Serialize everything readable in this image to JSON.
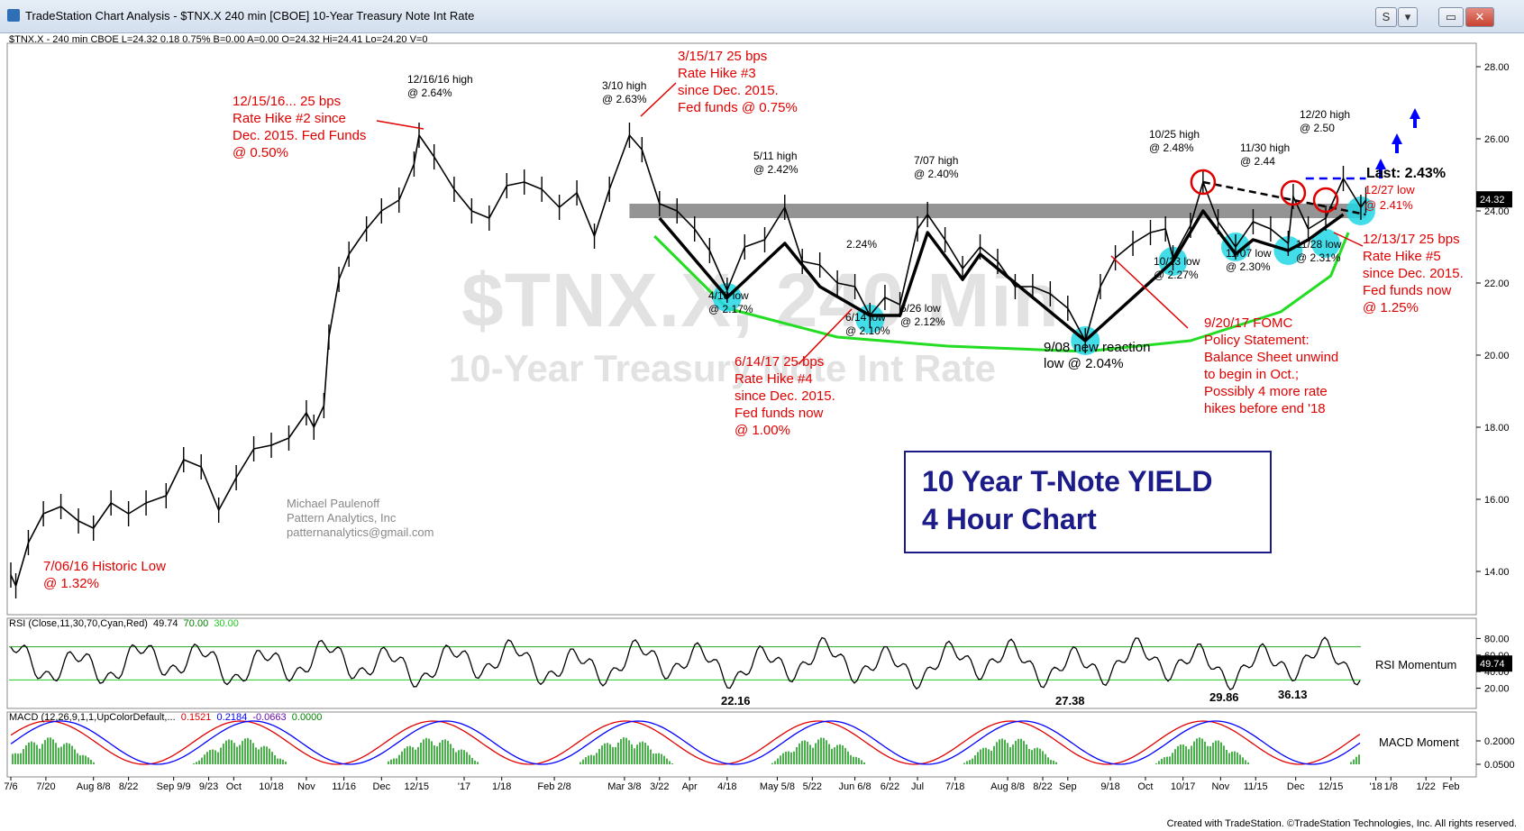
{
  "window": {
    "title": "TradeStation Chart Analysis - $TNX.X 240 min [CBOE] 10-Year Treasury Note Int Rate",
    "buttons": [
      "S",
      "▾",
      "▭",
      "✕"
    ]
  },
  "symbol_line": "$TNX.X - 240 min  CBOE  L=24.32  0.18  0.75%  B=0.00  A=0.00  O=24.32  Hi=24.41  Lo=24.20  V=0",
  "footer": "Created with TradeStation. ©TradeStation Technologies, Inc. All rights reserved.",
  "watermark": {
    "symbol": "$TNX.X, 240 Min",
    "name": "10-Year Treasury Note Int Rate"
  },
  "credit": [
    "Michael Paulenoff",
    "Pattern Analytics, Inc",
    "patternanalytics@gmail.com"
  ],
  "title_box": [
    "10 Year T-Note YIELD",
    "4 Hour Chart"
  ],
  "last_label": "Last: 2.43%",
  "price_badge": "24.32",
  "colors": {
    "accent_red": "#e00000",
    "channel": "#22dd22",
    "support_bar": "#888888",
    "highlight": "#22d7e6",
    "title_blue": "#1b1b8a",
    "arrow_blue": "#0000ff"
  },
  "annotations_red": [
    {
      "id": "low1606",
      "lines": [
        "7/06/16 Historic Low",
        "@ 1.32%"
      ]
    },
    {
      "id": "hike2",
      "lines": [
        "12/15/16... 25 bps",
        "Rate Hike #2 since",
        "Dec. 2015. Fed Funds",
        "@ 0.50%"
      ]
    },
    {
      "id": "hike3",
      "lines": [
        "3/15/17 25 bps",
        "Rate Hike #3",
        "since Dec. 2015.",
        "Fed funds @ 0.75%"
      ]
    },
    {
      "id": "hike4",
      "lines": [
        "6/14/17 25 bps",
        "Rate Hike #4",
        "since Dec. 2015.",
        "Fed funds now",
        "@ 1.00%"
      ]
    },
    {
      "id": "fomc",
      "lines": [
        "9/20/17 FOMC",
        "Policy Statement:",
        "Balance Sheet unwind",
        "to begin in Oct.;",
        "Possibly 4 more rate",
        "hikes before end '18"
      ]
    },
    {
      "id": "hike5",
      "lines": [
        "12/13/17 25 bps",
        "Rate Hike #5",
        "since Dec. 2015.",
        "Fed funds now",
        "@ 1.25%"
      ]
    },
    {
      "id": "low1227",
      "lines": [
        "12/27 low",
        "@ 2.41%"
      ]
    }
  ],
  "annotations_black": [
    {
      "id": "h1216",
      "lines": [
        "12/16/16 high",
        "@ 2.64%"
      ]
    },
    {
      "id": "h0310",
      "lines": [
        "3/10 high",
        "@ 2.63%"
      ]
    },
    {
      "id": "h0511",
      "lines": [
        "5/11 high",
        "@ 2.42%"
      ]
    },
    {
      "id": "h0707",
      "lines": [
        "7/07 high",
        "@ 2.40%"
      ]
    },
    {
      "id": "h224",
      "lines": [
        "2.24%"
      ]
    },
    {
      "id": "l0418",
      "lines": [
        "4/18 low",
        "@ 2.17%"
      ]
    },
    {
      "id": "l0614",
      "lines": [
        "6/14 low",
        "@ 2.10%"
      ]
    },
    {
      "id": "l0626",
      "lines": [
        "6/26 low",
        "@ 2.12%"
      ]
    },
    {
      "id": "l0908",
      "lines": [
        "9/08 new reaction",
        "low @ 2.04%"
      ]
    },
    {
      "id": "h1025",
      "lines": [
        "10/25 high",
        "@ 2.48%"
      ]
    },
    {
      "id": "h1130",
      "lines": [
        "11/30 high",
        "@ 2.44"
      ]
    },
    {
      "id": "h1220",
      "lines": [
        "12/20 high",
        "@ 2.50"
      ]
    },
    {
      "id": "l1013",
      "lines": [
        "10/13 low",
        "@ 2.27%"
      ]
    },
    {
      "id": "l1107",
      "lines": [
        "11/07 low",
        "@ 2.30%"
      ]
    },
    {
      "id": "l1128",
      "lines": [
        "11/28 low",
        "@ 2.31%"
      ]
    }
  ],
  "rsi_panel": {
    "header": "RSI (Close,11,30,70,Cyan,Red)  49.74  70.00  30.00",
    "header_parts": [
      "RSI (Close,11,30,70,Cyan,Red)",
      "49.74",
      "70.00",
      "30.00"
    ],
    "label": "RSI Momentum",
    "value_badge": "49.74",
    "ticks": [
      "80.00",
      "60.00",
      "40.00",
      "20.00"
    ],
    "tick_values": [
      80,
      60,
      40,
      20
    ],
    "low_labels": [
      "22.16",
      "27.38",
      "29.86",
      "36.13"
    ]
  },
  "macd_panel": {
    "header_parts": [
      "MACD (12,26,9,1,1,UpColorDefault,...",
      "0.1521",
      "0.2184",
      "-0.0663",
      "0.0000"
    ],
    "label": "MACD Moment",
    "ticks": [
      "0.2000",
      "0.0500"
    ]
  },
  "chart_data": {
    "type": "line",
    "title": "",
    "ylabel": "",
    "ylim": [
      12.8,
      28.6
    ],
    "y_ticks": [
      14,
      16,
      18,
      20,
      22,
      24,
      26,
      28
    ],
    "y_tick_labels": [
      "14.00",
      "16.00",
      "18.00",
      "20.00",
      "22.00",
      "24.00",
      "26.00",
      "28.00"
    ],
    "x_tick_labels": [
      "7/6",
      "7/20",
      "Aug 8/8",
      "8/22",
      "Sep 9/9",
      "9/23",
      "Oct",
      "10/18",
      "Nov",
      "11/16",
      "Dec",
      "12/15",
      "'17",
      "1/18",
      "Feb 2/8",
      "Mar 3/8",
      "3/22",
      "Apr",
      "4/18",
      "May 5/8",
      "5/22",
      "Jun 6/8",
      "6/22",
      "Jul",
      "7/18",
      "Aug 8/8",
      "8/22",
      "Sep",
      "9/18",
      "Oct",
      "10/17",
      "Nov",
      "11/15",
      "Dec",
      "12/15",
      "'18",
      "1/8",
      "1/22",
      "Feb"
    ],
    "x_tick_dates": [
      "2016-07-06",
      "2016-07-20",
      "2016-08-08",
      "2016-08-22",
      "2016-09-09",
      "2016-09-23",
      "2016-10-03",
      "2016-10-18",
      "2016-11-01",
      "2016-11-16",
      "2016-12-01",
      "2016-12-15",
      "2017-01-03",
      "2017-01-18",
      "2017-02-08",
      "2017-03-08",
      "2017-03-22",
      "2017-04-03",
      "2017-04-18",
      "2017-05-08",
      "2017-05-22",
      "2017-06-08",
      "2017-06-22",
      "2017-07-03",
      "2017-07-18",
      "2017-08-08",
      "2017-08-22",
      "2017-09-01",
      "2017-09-18",
      "2017-10-02",
      "2017-10-17",
      "2017-11-01",
      "2017-11-15",
      "2017-12-01",
      "2017-12-15",
      "2018-01-02",
      "2018-01-08",
      "2018-01-22",
      "2018-02-01"
    ],
    "series": [
      {
        "name": "$TNX.X",
        "points": [
          [
            "2016-07-06",
            13.9
          ],
          [
            "2016-07-08",
            13.6
          ],
          [
            "2016-07-13",
            14.8
          ],
          [
            "2016-07-19",
            15.6
          ],
          [
            "2016-07-26",
            15.8
          ],
          [
            "2016-08-02",
            15.4
          ],
          [
            "2016-08-08",
            15.2
          ],
          [
            "2016-08-15",
            15.9
          ],
          [
            "2016-08-22",
            15.6
          ],
          [
            "2016-08-29",
            15.9
          ],
          [
            "2016-09-06",
            16.1
          ],
          [
            "2016-09-13",
            17.1
          ],
          [
            "2016-09-20",
            16.9
          ],
          [
            "2016-09-27",
            15.7
          ],
          [
            "2016-10-04",
            16.6
          ],
          [
            "2016-10-11",
            17.4
          ],
          [
            "2016-10-18",
            17.5
          ],
          [
            "2016-10-25",
            17.7
          ],
          [
            "2016-11-01",
            18.4
          ],
          [
            "2016-11-04",
            18.0
          ],
          [
            "2016-11-08",
            18.6
          ],
          [
            "2016-11-10",
            20.5
          ],
          [
            "2016-11-14",
            22.1
          ],
          [
            "2016-11-18",
            22.8
          ],
          [
            "2016-11-25",
            23.5
          ],
          [
            "2016-12-01",
            24.0
          ],
          [
            "2016-12-08",
            24.3
          ],
          [
            "2016-12-14",
            25.3
          ],
          [
            "2016-12-16",
            26.1
          ],
          [
            "2016-12-22",
            25.5
          ],
          [
            "2016-12-30",
            24.6
          ],
          [
            "2017-01-06",
            24.0
          ],
          [
            "2017-01-13",
            23.8
          ],
          [
            "2017-01-20",
            24.7
          ],
          [
            "2017-01-27",
            24.8
          ],
          [
            "2017-02-03",
            24.6
          ],
          [
            "2017-02-10",
            24.1
          ],
          [
            "2017-02-17",
            24.5
          ],
          [
            "2017-02-24",
            23.3
          ],
          [
            "2017-03-02",
            24.6
          ],
          [
            "2017-03-10",
            26.1
          ],
          [
            "2017-03-15",
            25.7
          ],
          [
            "2017-03-22",
            24.2
          ],
          [
            "2017-03-29",
            24.0
          ],
          [
            "2017-04-05",
            23.5
          ],
          [
            "2017-04-11",
            22.9
          ],
          [
            "2017-04-18",
            21.8
          ],
          [
            "2017-04-25",
            23.0
          ],
          [
            "2017-05-03",
            23.2
          ],
          [
            "2017-05-11",
            24.1
          ],
          [
            "2017-05-18",
            22.6
          ],
          [
            "2017-05-25",
            22.5
          ],
          [
            "2017-06-01",
            22.0
          ],
          [
            "2017-06-08",
            21.9
          ],
          [
            "2017-06-14",
            21.1
          ],
          [
            "2017-06-20",
            21.6
          ],
          [
            "2017-06-26",
            21.4
          ],
          [
            "2017-07-03",
            23.5
          ],
          [
            "2017-07-07",
            23.9
          ],
          [
            "2017-07-14",
            23.2
          ],
          [
            "2017-07-21",
            22.4
          ],
          [
            "2017-07-28",
            23.0
          ],
          [
            "2017-08-04",
            22.6
          ],
          [
            "2017-08-11",
            21.9
          ],
          [
            "2017-08-18",
            21.9
          ],
          [
            "2017-08-25",
            21.7
          ],
          [
            "2017-09-01",
            21.3
          ],
          [
            "2017-09-08",
            20.4
          ],
          [
            "2017-09-14",
            21.9
          ],
          [
            "2017-09-20",
            22.7
          ],
          [
            "2017-09-27",
            23.1
          ],
          [
            "2017-10-04",
            23.4
          ],
          [
            "2017-10-10",
            23.5
          ],
          [
            "2017-10-13",
            22.7
          ],
          [
            "2017-10-20",
            23.6
          ],
          [
            "2017-10-25",
            24.8
          ],
          [
            "2017-10-31",
            23.7
          ],
          [
            "2017-11-07",
            23.0
          ],
          [
            "2017-11-14",
            23.7
          ],
          [
            "2017-11-21",
            23.5
          ],
          [
            "2017-11-28",
            23.1
          ],
          [
            "2017-11-30",
            24.4
          ],
          [
            "2017-12-06",
            23.5
          ],
          [
            "2017-12-13",
            23.8
          ],
          [
            "2017-12-20",
            24.9
          ],
          [
            "2017-12-27",
            24.1
          ],
          [
            "2017-12-29",
            24.3
          ]
        ]
      }
    ],
    "overlays": {
      "support_band": {
        "y_from": 23.8,
        "y_to": 24.2,
        "from": "2017-03-10",
        "to": "2017-12-29"
      },
      "breakout_line": {
        "y": 24.9,
        "from": "2017-12-05",
        "to": "2017-12-29",
        "style": "dashed",
        "color": "blue"
      },
      "upper_trendline": {
        "from": [
          "2017-10-25",
          24.8
        ],
        "to": [
          "2017-12-29",
          23.9
        ],
        "style": "dashed"
      },
      "pattern_zigzag": [
        [
          "2017-03-22",
          23.8
        ],
        [
          "2017-04-18",
          21.6
        ],
        [
          "2017-05-11",
          23.1
        ],
        [
          "2017-05-25",
          21.9
        ],
        [
          "2017-06-14",
          21.1
        ],
        [
          "2017-06-26",
          21.1
        ],
        [
          "2017-07-07",
          23.4
        ],
        [
          "2017-07-21",
          22.1
        ],
        [
          "2017-07-28",
          22.8
        ],
        [
          "2017-09-08",
          20.4
        ],
        [
          "2017-10-13",
          22.6
        ],
        [
          "2017-10-25",
          24.0
        ],
        [
          "2017-11-07",
          22.8
        ],
        [
          "2017-11-14",
          23.2
        ],
        [
          "2017-11-28",
          22.9
        ],
        [
          "2017-12-06",
          23.2
        ],
        [
          "2017-12-20",
          23.9
        ]
      ]
    }
  }
}
